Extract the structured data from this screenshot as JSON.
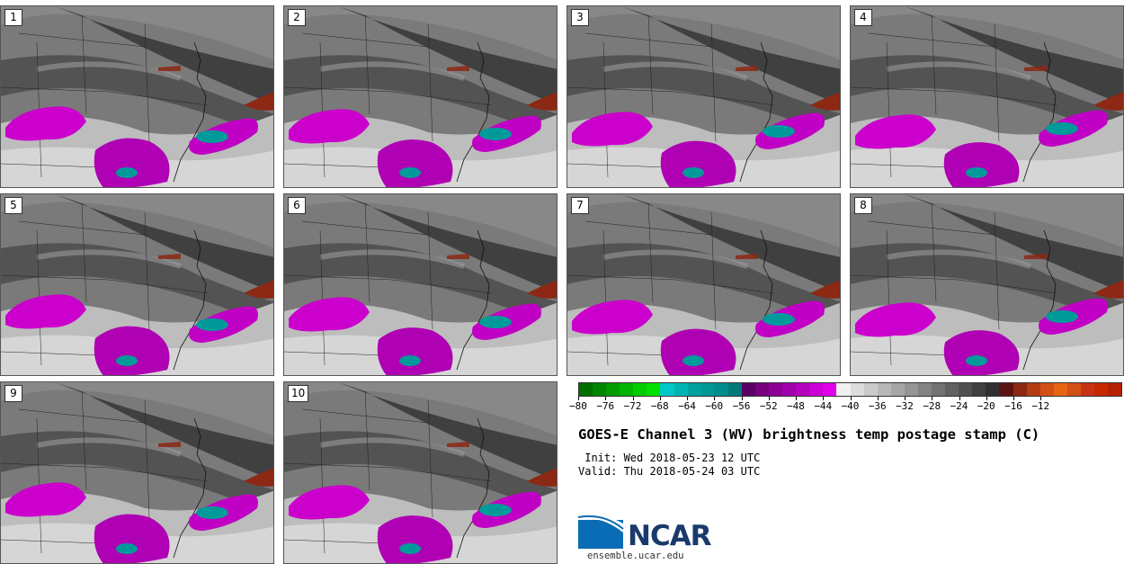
{
  "members": [
    "1",
    "2",
    "3",
    "4",
    "5",
    "6",
    "7",
    "8",
    "9",
    "10"
  ],
  "colorbar": {
    "ticks": [
      "−80",
      "−76",
      "−72",
      "−68",
      "−64",
      "−60",
      "−56",
      "−52",
      "−48",
      "−44",
      "−40",
      "−36",
      "−32",
      "−28",
      "−24",
      "−20",
      "−16",
      "−12"
    ],
    "colors": [
      "#006f00",
      "#008500",
      "#009c00",
      "#00b400",
      "#00cc00",
      "#00e000",
      "#00c8c8",
      "#00b4b4",
      "#00a0a0",
      "#009696",
      "#008c8c",
      "#007878",
      "#5a0064",
      "#78007d",
      "#8c0096",
      "#a000aa",
      "#b400be",
      "#cc00d6",
      "#e000ea",
      "#f0f0f0",
      "#dcdcdc",
      "#cacaca",
      "#b8b8b8",
      "#a6a6a6",
      "#959595",
      "#838383",
      "#727272",
      "#616161",
      "#505050",
      "#404040",
      "#303030",
      "#5a1414",
      "#8c2814",
      "#b43c14",
      "#d25014",
      "#e66414",
      "#d25014",
      "#c83214",
      "#c82800",
      "#b42000"
    ]
  },
  "title": "GOES-E Channel 3 (WV) brightness temp postage stamp (C)",
  "init_line": " Init: Wed 2018-05-23 12 UTC",
  "valid_line": "Valid: Thu 2018-05-24 03 UTC",
  "logo": {
    "text": "NCAR",
    "url": "ensemble.ucar.edu"
  }
}
